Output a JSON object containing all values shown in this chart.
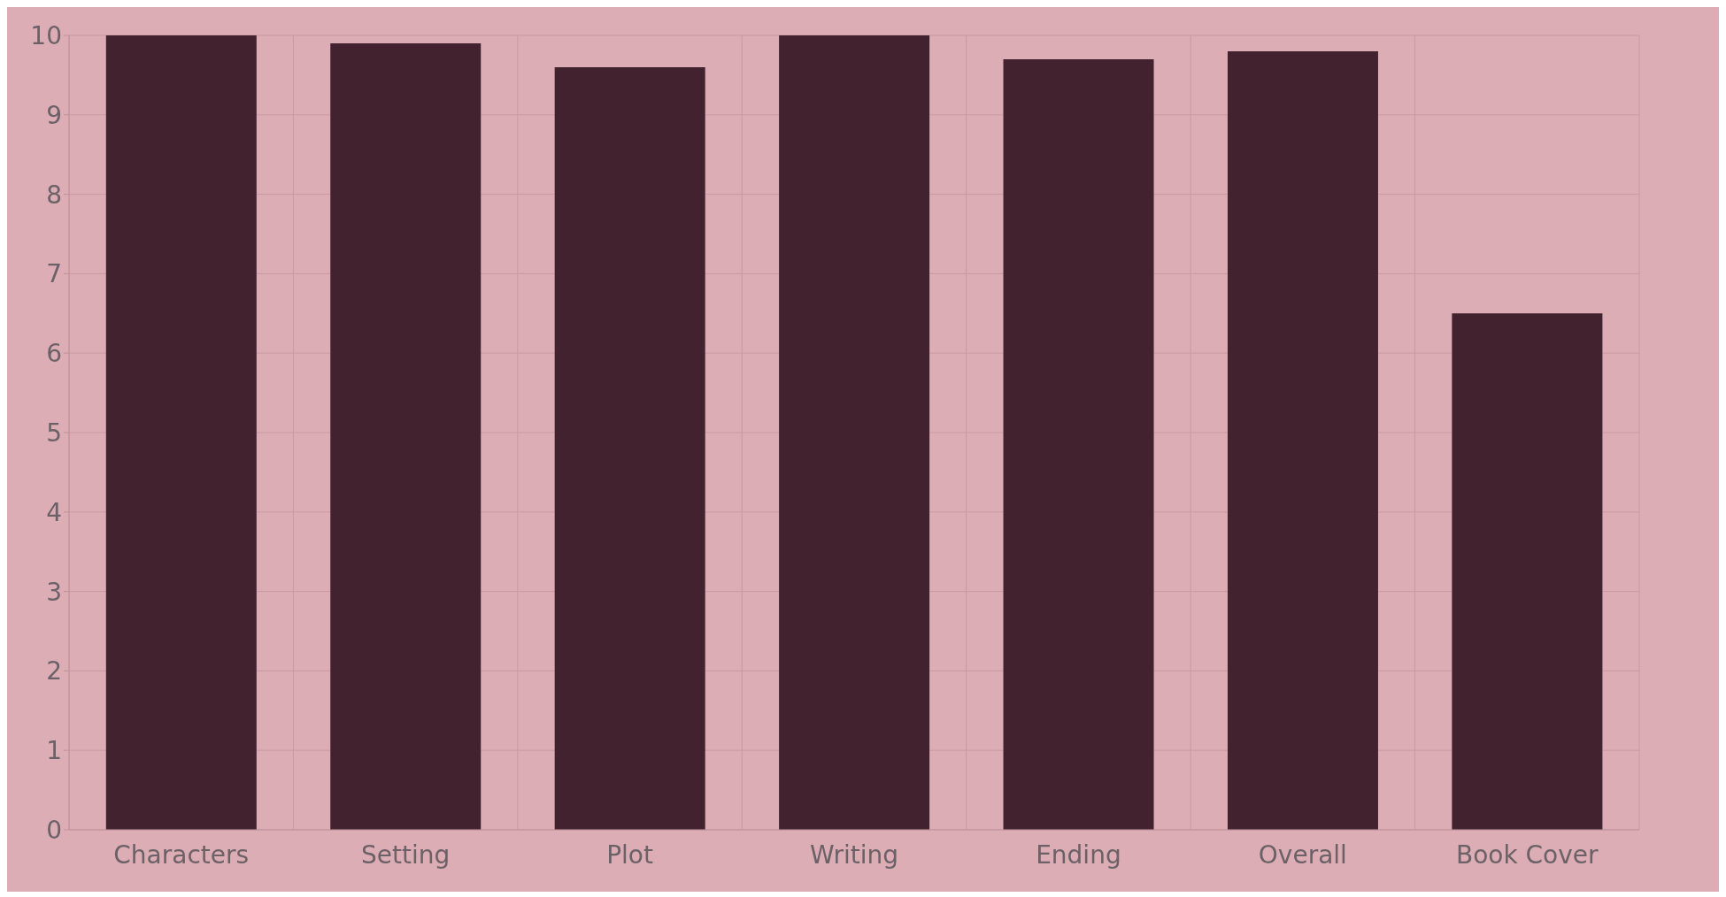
{
  "chart_data": {
    "type": "bar",
    "categories": [
      "Characters",
      "Setting",
      "Plot",
      "Writing",
      "Ending",
      "Overall",
      "Book Cover"
    ],
    "values": [
      10,
      9.9,
      9.6,
      10,
      9.7,
      9.8,
      6.5
    ],
    "color": "#42222f",
    "ylim": [
      0,
      10
    ],
    "yticks": [
      0,
      1,
      2,
      3,
      4,
      5,
      6,
      7,
      8,
      9,
      10
    ],
    "grid": true
  }
}
